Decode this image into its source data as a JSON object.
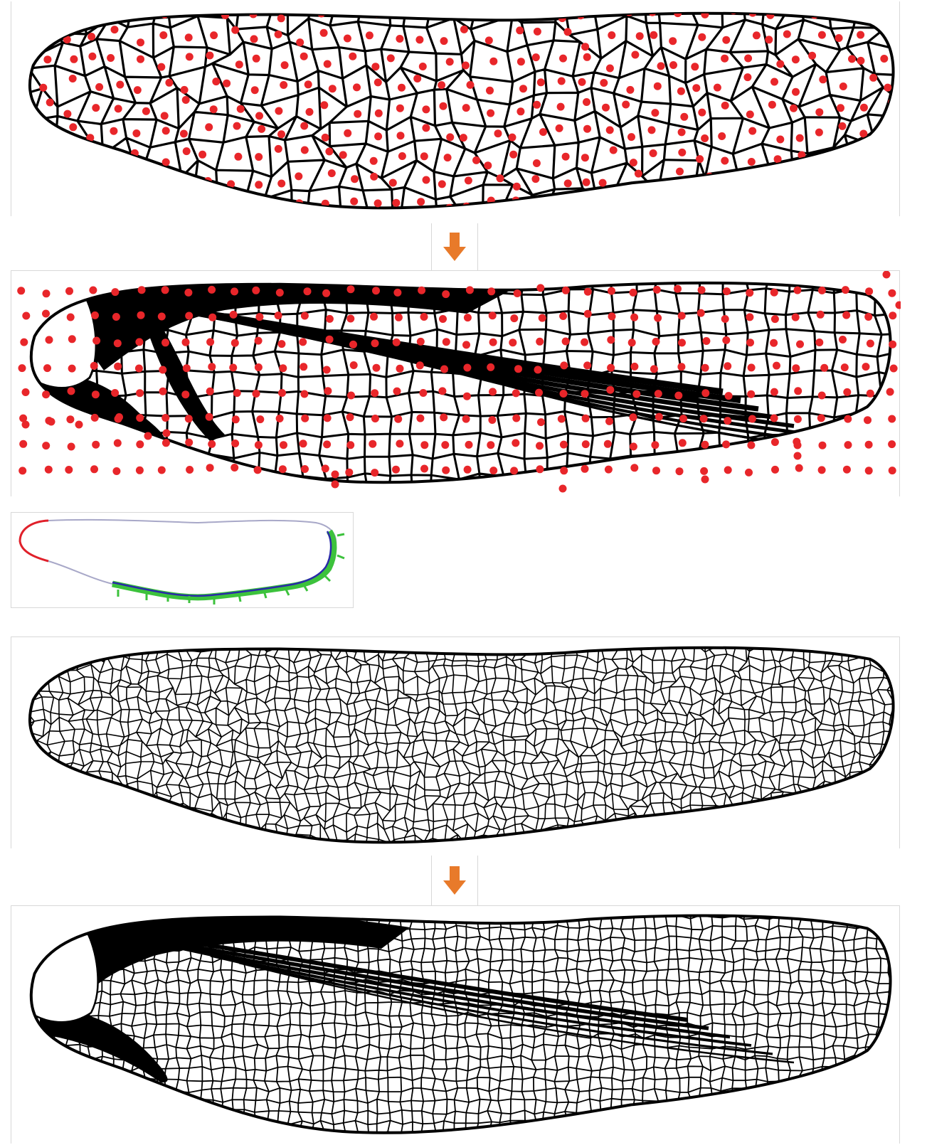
{
  "figure": {
    "panels": [
      {
        "name": "voronoi-seeded-wing",
        "style": "seeds"
      },
      {
        "name": "optimized-dragonfly-wing",
        "style": "seeds-veins"
      },
      {
        "name": "fine-voronoi-wing",
        "style": "fine"
      },
      {
        "name": "optimized-fine-wing",
        "style": "fine-veins"
      }
    ],
    "arrows": [
      {
        "name": "down-arrow"
      },
      {
        "name": "down-arrow"
      }
    ],
    "inset": {
      "name": "boundary-condition-outline"
    }
  },
  "colors": {
    "seed": "#e8262a",
    "vein": "#000000",
    "arrow": "#e87a2a",
    "boundary_red": "#e0202a",
    "boundary_blue": "#2a2aa8",
    "boundary_lavender": "#a8a8c8",
    "boundary_green": "#3cc23c"
  },
  "icons": {
    "arrow": "down-arrow-icon"
  }
}
